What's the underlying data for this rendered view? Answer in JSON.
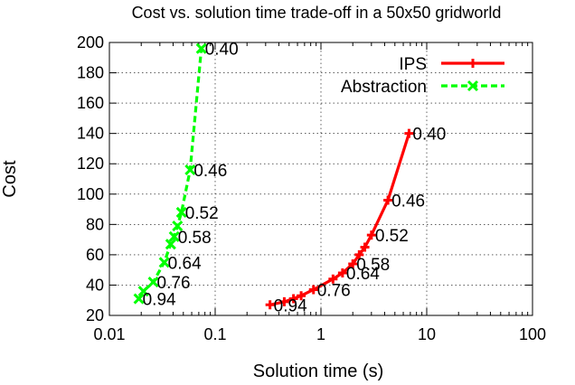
{
  "chart_data": {
    "type": "line",
    "title": "Cost vs. solution time trade-off in a 50x50 gridworld",
    "xlabel": "Solution time (s)",
    "ylabel": "Cost",
    "x_scale": "log",
    "xlim": [
      0.01,
      100
    ],
    "ylim": [
      20,
      200
    ],
    "x_ticks": [
      {
        "value": 0.01,
        "label": "0.01"
      },
      {
        "value": 0.1,
        "label": "0.1"
      },
      {
        "value": 1,
        "label": "1"
      },
      {
        "value": 10,
        "label": "10"
      },
      {
        "value": 100,
        "label": "100"
      }
    ],
    "y_ticks": [
      20,
      40,
      60,
      80,
      100,
      120,
      140,
      160,
      180,
      200
    ],
    "grid": true,
    "legend_position": "top-right",
    "series": [
      {
        "name": "IPS",
        "color": "#ff0000",
        "line_style": "solid",
        "marker": "plus",
        "points": [
          {
            "x": 0.33,
            "y": 27
          },
          {
            "x": 0.45,
            "y": 29
          },
          {
            "x": 0.55,
            "y": 31
          },
          {
            "x": 0.65,
            "y": 33
          },
          {
            "x": 0.85,
            "y": 37
          },
          {
            "x": 1.3,
            "y": 44
          },
          {
            "x": 1.6,
            "y": 48
          },
          {
            "x": 2.0,
            "y": 54
          },
          {
            "x": 2.3,
            "y": 60
          },
          {
            "x": 2.6,
            "y": 65
          },
          {
            "x": 3.0,
            "y": 73
          },
          {
            "x": 4.3,
            "y": 96
          },
          {
            "x": 6.8,
            "y": 140
          }
        ],
        "annotations": [
          {
            "x": 0.33,
            "y": 27,
            "label": "0.94"
          },
          {
            "x": 0.85,
            "y": 37,
            "label": "0.76"
          },
          {
            "x": 1.6,
            "y": 48,
            "label": "0.64"
          },
          {
            "x": 2.0,
            "y": 54,
            "label": "0.58"
          },
          {
            "x": 3.0,
            "y": 73,
            "label": "0.52"
          },
          {
            "x": 4.3,
            "y": 96,
            "label": "0.46"
          },
          {
            "x": 6.8,
            "y": 140,
            "label": "0.40"
          }
        ]
      },
      {
        "name": "Abstraction",
        "color": "#00ff00",
        "line_style": "dashed",
        "marker": "cross",
        "points": [
          {
            "x": 0.019,
            "y": 31
          },
          {
            "x": 0.021,
            "y": 36
          },
          {
            "x": 0.026,
            "y": 42
          },
          {
            "x": 0.033,
            "y": 55
          },
          {
            "x": 0.038,
            "y": 67
          },
          {
            "x": 0.041,
            "y": 72
          },
          {
            "x": 0.044,
            "y": 79
          },
          {
            "x": 0.048,
            "y": 88
          },
          {
            "x": 0.058,
            "y": 116
          },
          {
            "x": 0.074,
            "y": 196
          }
        ],
        "annotations": [
          {
            "x": 0.019,
            "y": 31,
            "label": "0.94"
          },
          {
            "x": 0.026,
            "y": 42,
            "label": "0.76"
          },
          {
            "x": 0.033,
            "y": 55,
            "label": "0.64"
          },
          {
            "x": 0.041,
            "y": 72,
            "label": "0.58"
          },
          {
            "x": 0.048,
            "y": 88,
            "label": "0.52"
          },
          {
            "x": 0.058,
            "y": 116,
            "label": "0.46"
          },
          {
            "x": 0.074,
            "y": 196,
            "label": "0.40"
          }
        ]
      }
    ]
  }
}
